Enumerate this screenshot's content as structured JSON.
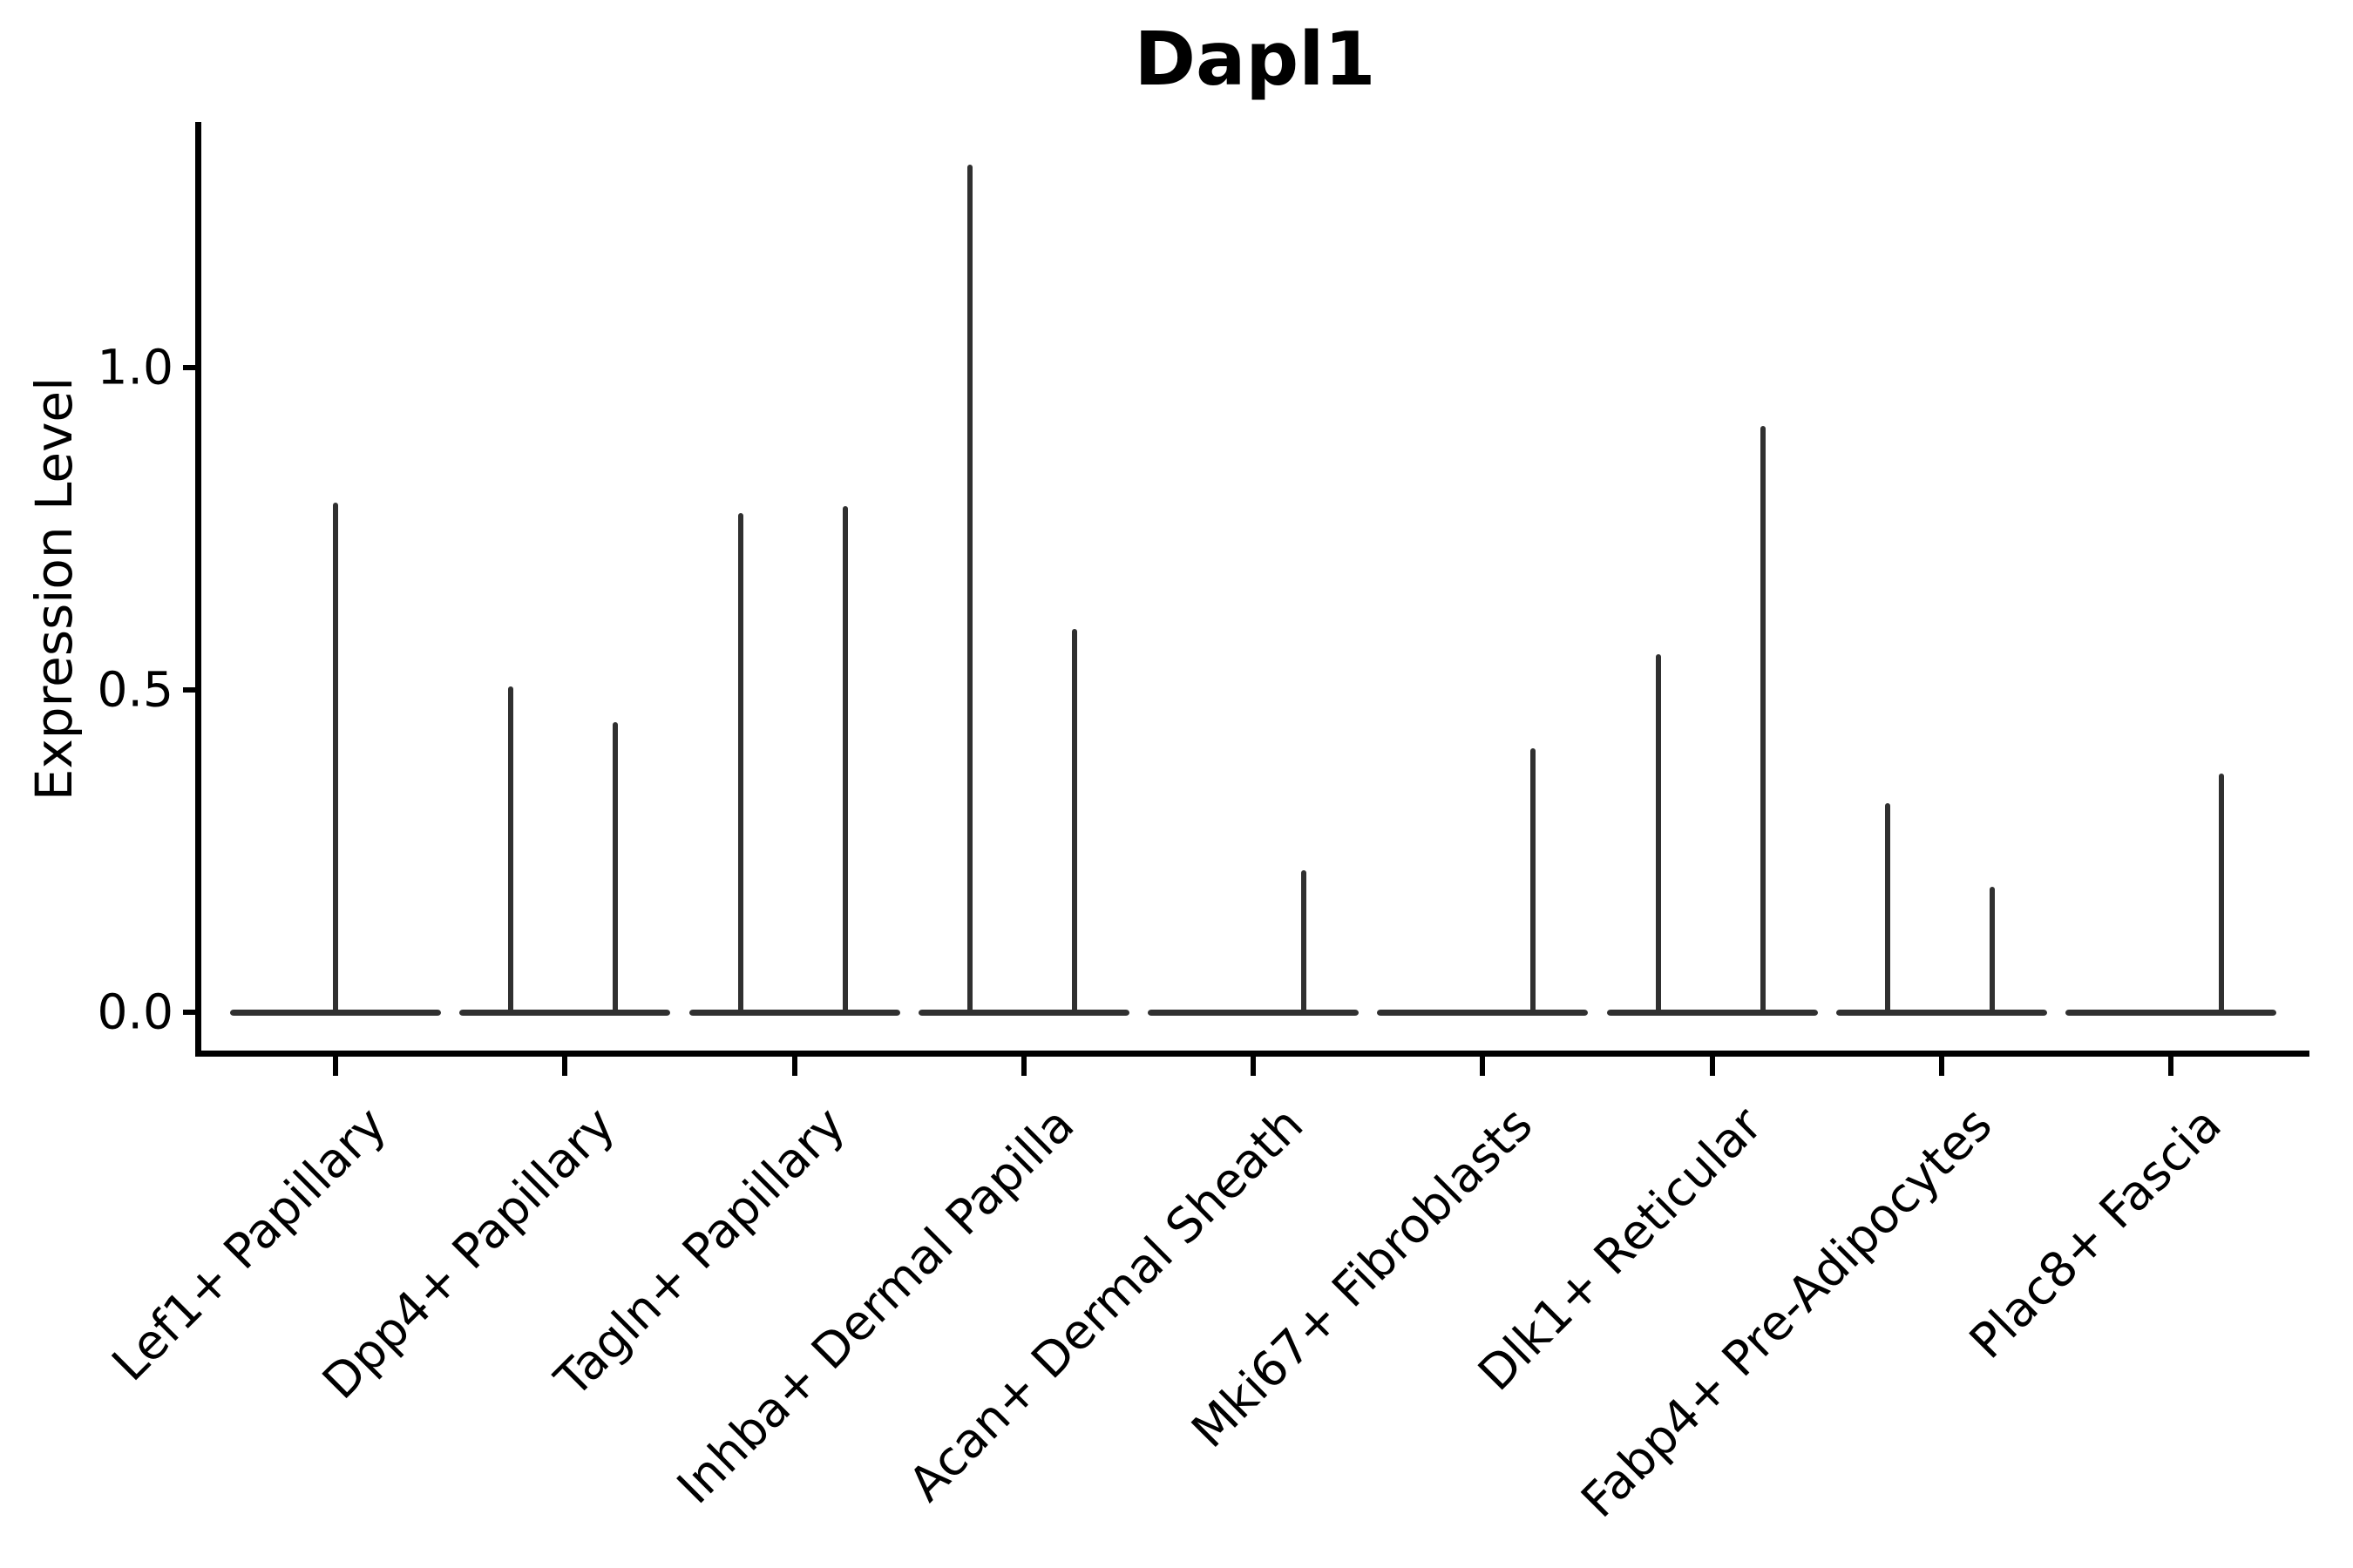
{
  "chart_data": {
    "type": "violin",
    "title": "Dapl1",
    "ylabel": "Expression Level",
    "xlabel": "",
    "grid": false,
    "legend": "none",
    "axis_color": "#000000",
    "violin_color": "#303030",
    "ylim": [
      -0.065,
      1.38
    ],
    "yticks": [
      {
        "label": "0.0",
        "value": 0.0
      },
      {
        "label": "0.5",
        "value": 0.5
      },
      {
        "label": "1.0",
        "value": 1.0
      }
    ],
    "categories": [
      "Lef1+ Papillary",
      "Dpp4+ Papillary",
      "Tagln+ Papillary",
      "Inhba+ Dermal Papilla",
      "Acan+ Dermal Sheath",
      "Mki67+ Fibroblasts",
      "Dlk1+ Reticular",
      "Fabp4+ Pre-Adipocytes",
      "Plac8+ Fascia"
    ],
    "violins": [
      {
        "category": "Lef1+ Papillary",
        "baseline_value": 0.0,
        "spikes": [
          {
            "position": "center",
            "peak": 0.79
          }
        ]
      },
      {
        "category": "Dpp4+ Papillary",
        "baseline_value": 0.0,
        "spikes": [
          {
            "position": "left",
            "peak": 0.505
          },
          {
            "position": "right",
            "peak": 0.45
          }
        ]
      },
      {
        "category": "Tagln+ Papillary",
        "baseline_value": 0.0,
        "spikes": [
          {
            "position": "left",
            "peak": 0.775
          },
          {
            "position": "right",
            "peak": 0.785
          }
        ]
      },
      {
        "category": "Inhba+ Dermal Papilla",
        "baseline_value": 0.0,
        "spikes": [
          {
            "position": "left",
            "peak": 1.315
          },
          {
            "position": "right",
            "peak": 0.595
          }
        ]
      },
      {
        "category": "Acan+ Dermal Sheath",
        "baseline_value": 0.0,
        "spikes": [
          {
            "position": "right",
            "peak": 0.22
          }
        ]
      },
      {
        "category": "Mki67+ Fibroblasts",
        "baseline_value": 0.0,
        "spikes": [
          {
            "position": "right",
            "peak": 0.41
          }
        ]
      },
      {
        "category": "Dlk1+ Reticular",
        "baseline_value": 0.0,
        "spikes": [
          {
            "position": "left",
            "peak": 0.555
          },
          {
            "position": "right",
            "peak": 0.91
          }
        ]
      },
      {
        "category": "Fabp4+ Pre-Adipocytes",
        "baseline_value": 0.0,
        "spikes": [
          {
            "position": "left",
            "peak": 0.325
          },
          {
            "position": "right",
            "peak": 0.195
          }
        ]
      },
      {
        "category": "Plac8+ Fascia",
        "baseline_value": 0.0,
        "spikes": [
          {
            "position": "right",
            "peak": 0.37
          }
        ]
      }
    ]
  }
}
